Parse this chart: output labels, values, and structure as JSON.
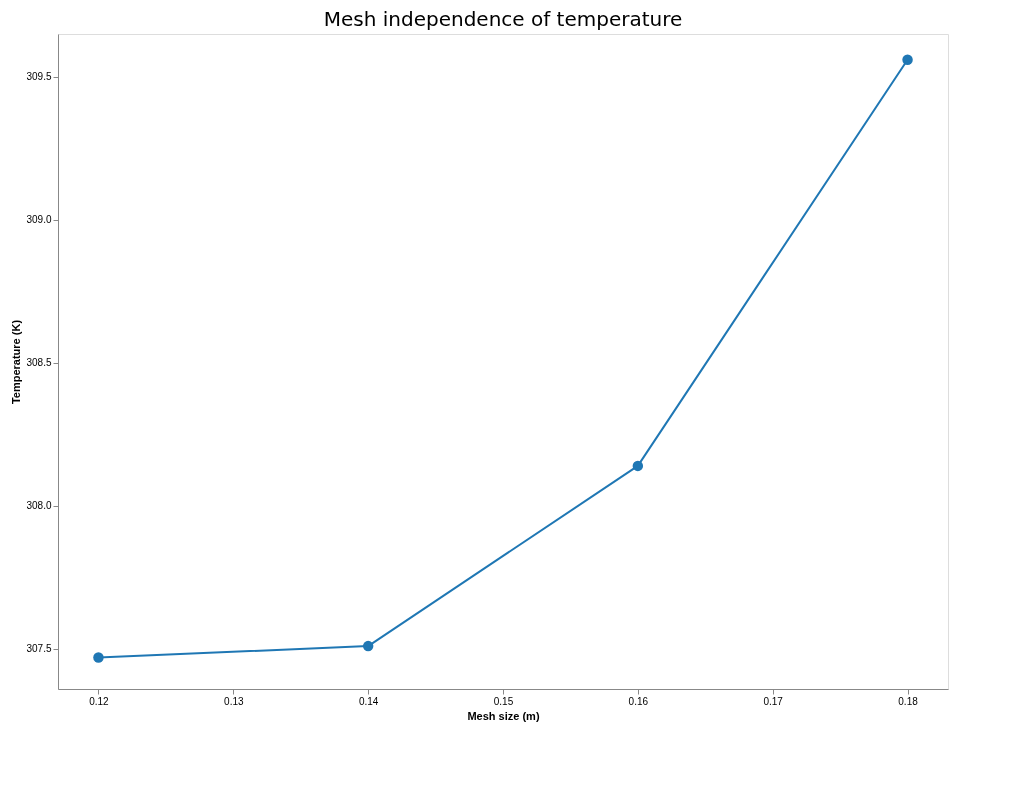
{
  "chart_data": {
    "type": "line",
    "title": "Mesh independence of temperature",
    "xlabel": "Mesh size (m)",
    "ylabel": "Temperature (K)",
    "x": [
      0.12,
      0.14,
      0.16,
      0.18
    ],
    "series": [
      {
        "color": "#1f77b4",
        "values": [
          307.47,
          307.51,
          308.14,
          309.56
        ]
      }
    ],
    "xlim": [
      0.117,
      0.183
    ],
    "xticks": [
      {
        "value": 0.12,
        "label": "0.12"
      },
      {
        "value": 0.13,
        "label": "0.13"
      },
      {
        "value": 0.14,
        "label": "0.14"
      },
      {
        "value": 0.15,
        "label": "0.15"
      },
      {
        "value": 0.16,
        "label": "0.16"
      },
      {
        "value": 0.17,
        "label": "0.17"
      },
      {
        "value": 0.18,
        "label": "0.18"
      }
    ],
    "ylim": [
      307.36,
      309.65
    ],
    "yticks": [
      {
        "value": 307.5,
        "label": "307.5"
      },
      {
        "value": 308.0,
        "label": "308.0"
      },
      {
        "value": 308.5,
        "label": "308.5"
      },
      {
        "value": 309.0,
        "label": "309.0"
      },
      {
        "value": 309.5,
        "label": "309.5"
      }
    ],
    "marker": "circle",
    "line_style": "solid",
    "grid": false,
    "legend": false
  }
}
